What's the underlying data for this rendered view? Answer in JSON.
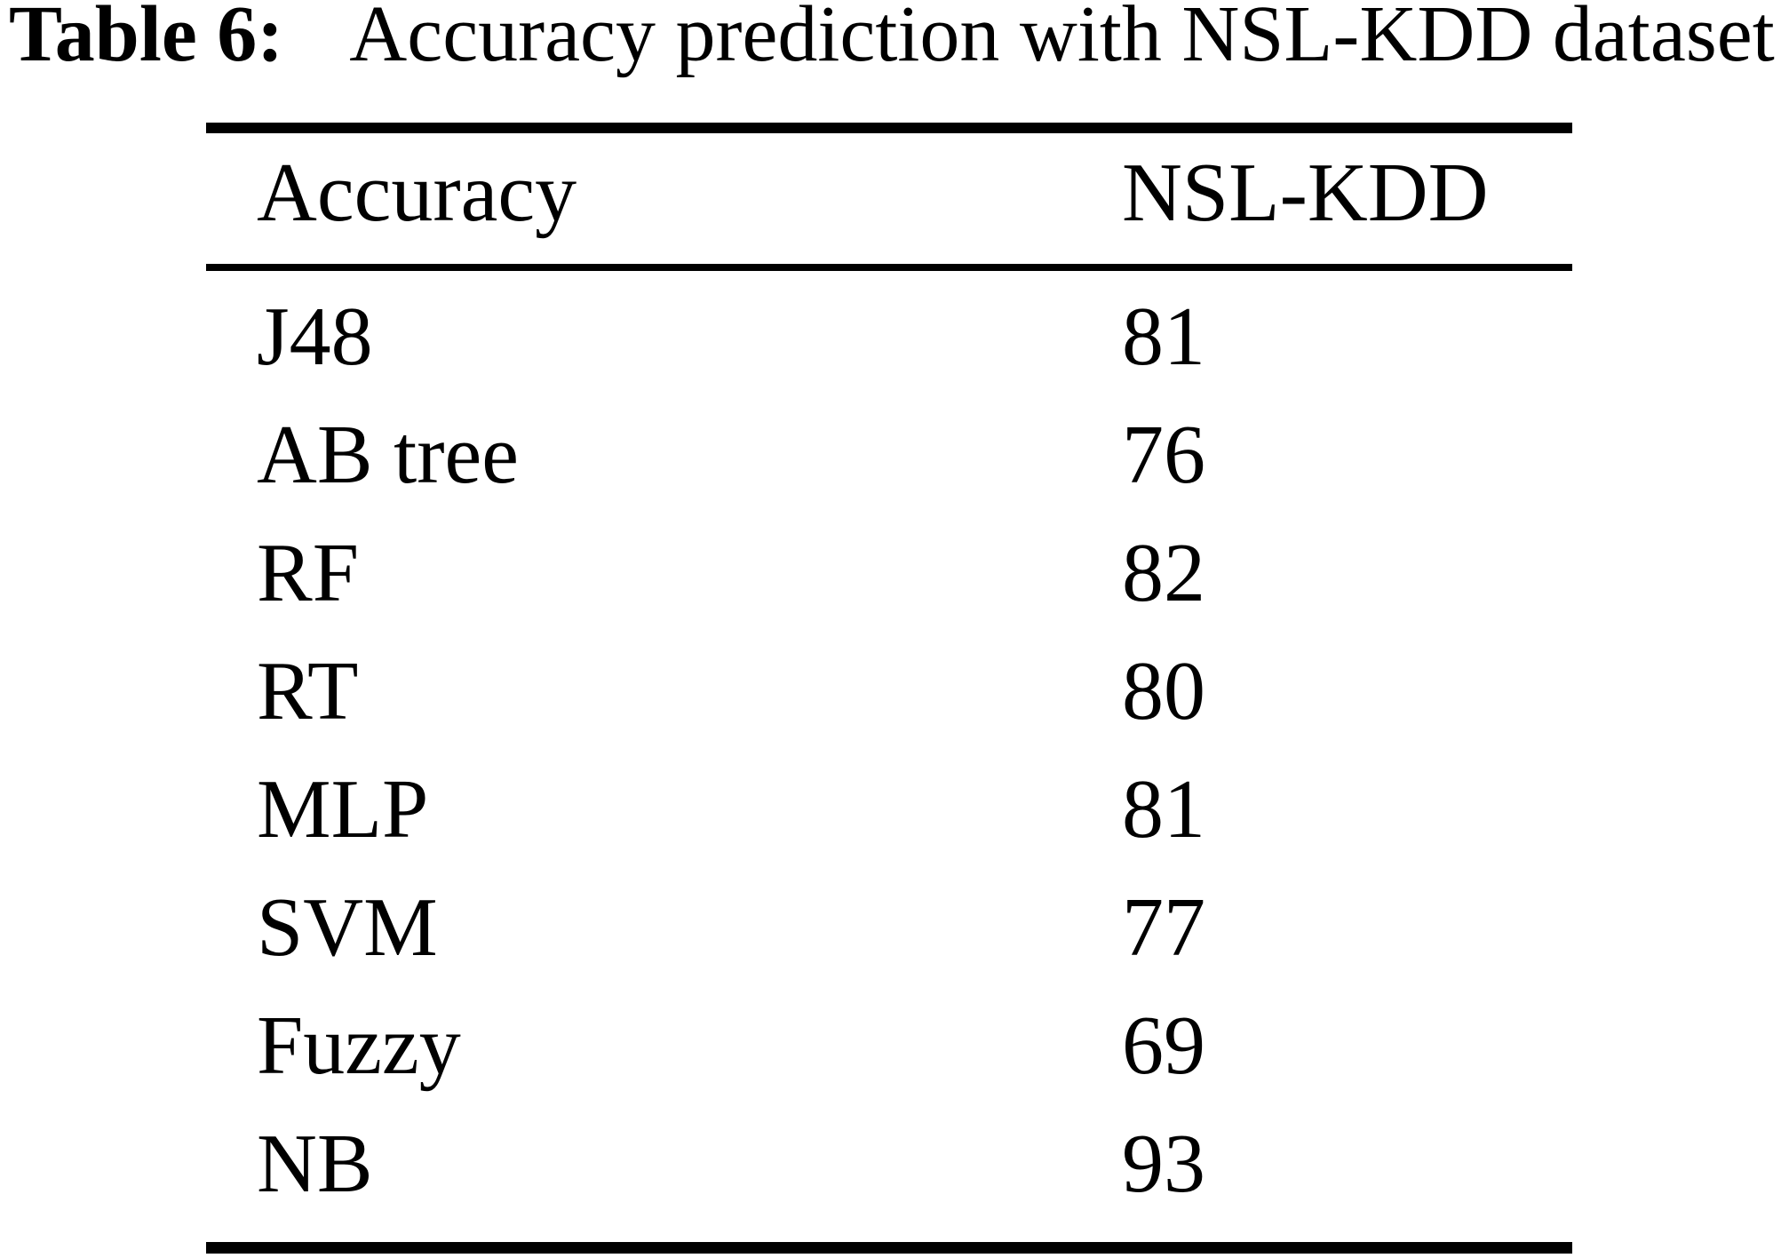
{
  "title": {
    "label": "Table 6:",
    "text": "Accuracy prediction with NSL-KDD dataset"
  },
  "table": {
    "columns": [
      "Accuracy",
      "NSL-KDD"
    ],
    "rows": [
      {
        "model": "J48",
        "value": "81"
      },
      {
        "model": "AB tree",
        "value": "76"
      },
      {
        "model": "RF",
        "value": "82"
      },
      {
        "model": "RT",
        "value": "80"
      },
      {
        "model": "MLP",
        "value": "81"
      },
      {
        "model": "SVM",
        "value": "77"
      },
      {
        "model": "Fuzzy",
        "value": "69"
      },
      {
        "model": "NB",
        "value": "93"
      }
    ]
  },
  "colors": {
    "text": "#000000",
    "background": "#ffffff",
    "rule": "#000000"
  }
}
